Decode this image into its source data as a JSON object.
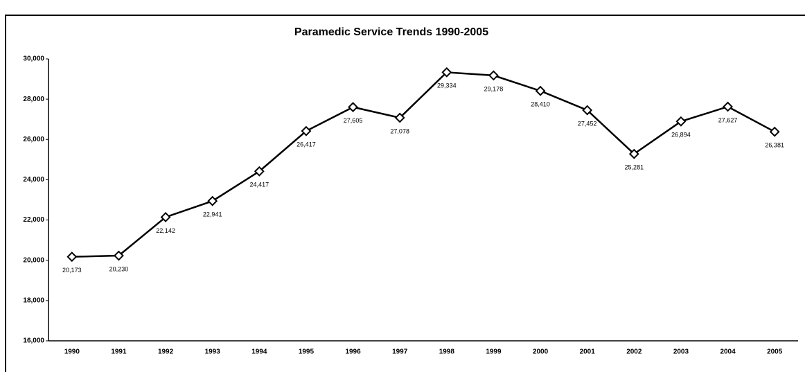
{
  "chart_data": {
    "type": "line",
    "title": "Paramedic Service Trends 1990-2005",
    "categories": [
      "1990",
      "1991",
      "1992",
      "1993",
      "1994",
      "1995",
      "1996",
      "1997",
      "1998",
      "1999",
      "2000",
      "2001",
      "2002",
      "2003",
      "2004",
      "2005"
    ],
    "series": [
      {
        "name": "Paramedic Service",
        "color": "#000000",
        "values": [
          20173,
          20230,
          22142,
          22941,
          24417,
          26417,
          27605,
          27078,
          29334,
          29178,
          28410,
          27452,
          25281,
          26894,
          27627,
          26381
        ],
        "value_labels": [
          "20,173",
          "20,230",
          "22,142",
          "22,941",
          "24,417",
          "26,417",
          "27,605",
          "27,078",
          "29,334",
          "29,178",
          "28,410",
          "27,452",
          "25,281",
          "26,894",
          "27,627",
          "26,381"
        ]
      }
    ],
    "ylim": [
      16000,
      30000
    ],
    "yticks": [
      {
        "value": 16000,
        "label": "16,000"
      },
      {
        "value": 18000,
        "label": "18,000"
      },
      {
        "value": 20000,
        "label": "20,000"
      },
      {
        "value": 22000,
        "label": "22,000"
      },
      {
        "value": 24000,
        "label": "24,000"
      },
      {
        "value": 26000,
        "label": "26,000"
      },
      {
        "value": 28000,
        "label": "28,000"
      },
      {
        "value": 30000,
        "label": "30,000"
      }
    ],
    "grid": false
  }
}
